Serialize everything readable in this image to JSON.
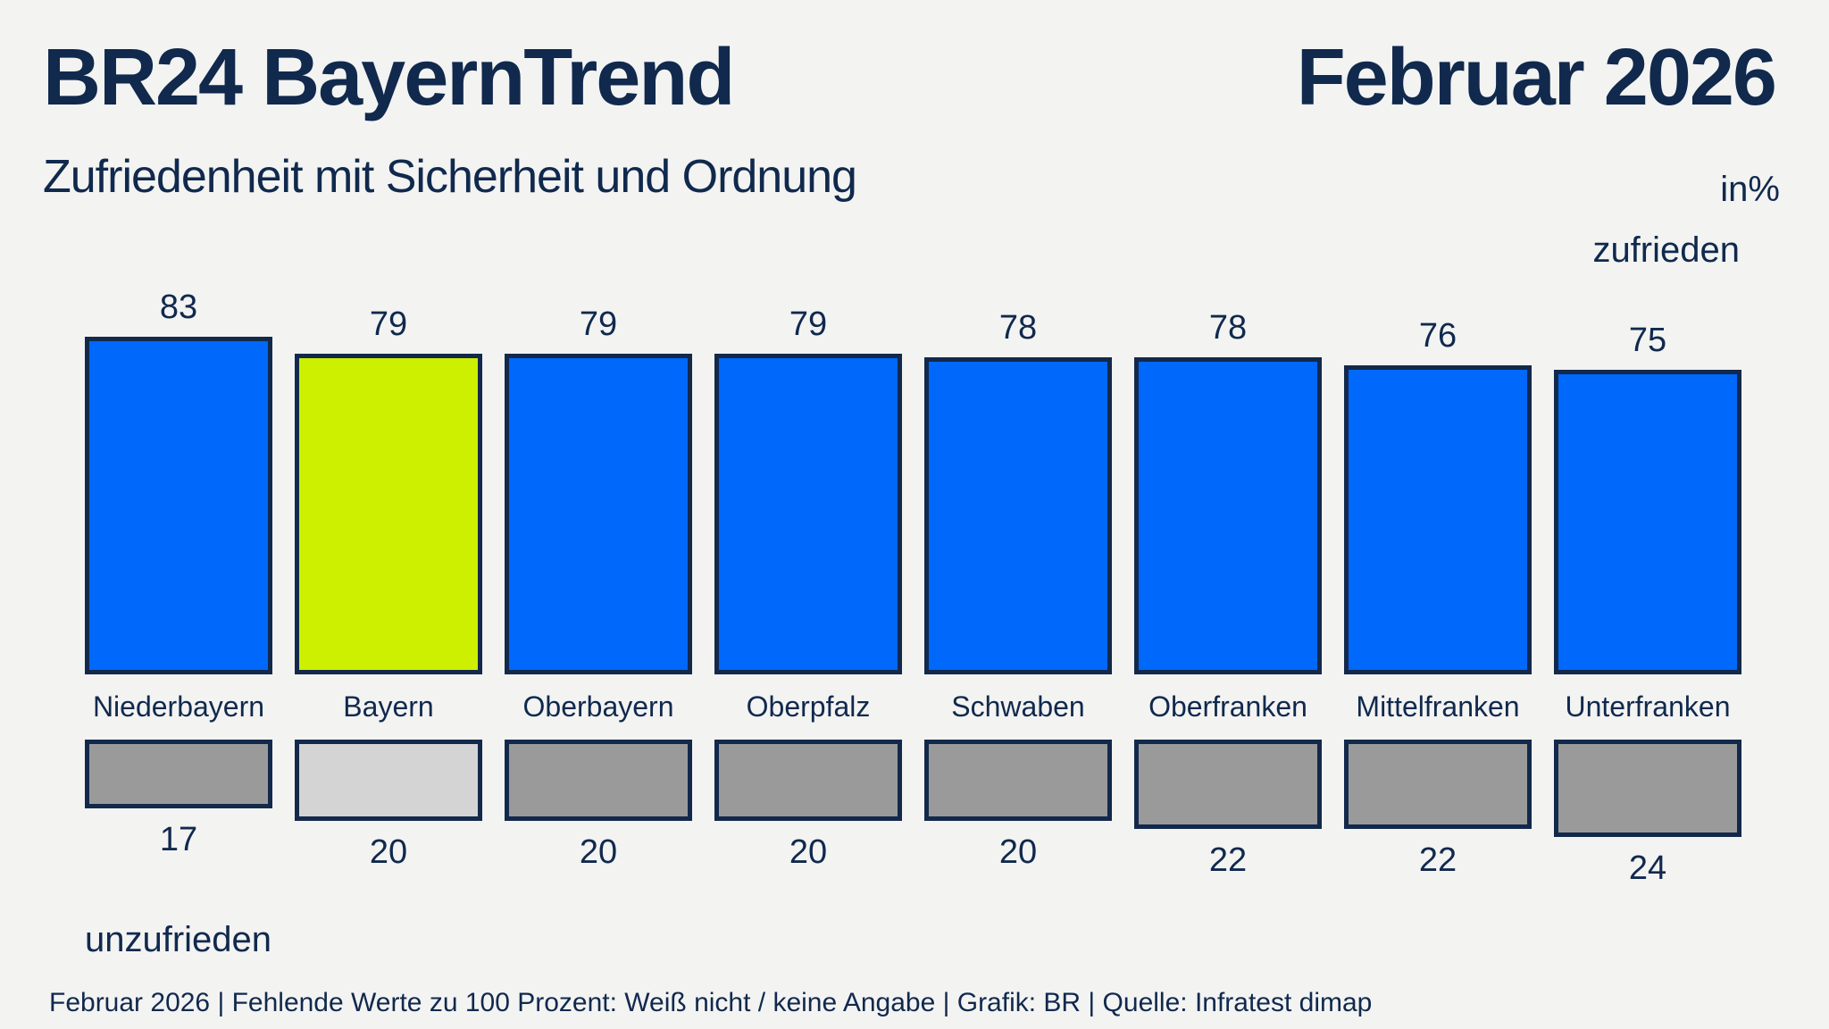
{
  "header": {
    "title": "BR24 BayernTrend",
    "date": "Februar 2026",
    "subtitle": "Zufriedenheit mit Sicherheit und Ordnung",
    "unit": "in%"
  },
  "legend": {
    "satisfied": "zufrieden",
    "unsatisfied": "unzufrieden"
  },
  "footer": "Februar 2026 | Fehlende Werte zu 100 Prozent: Weiß nicht / keine Angabe | Grafik: BR | Quelle: Infratest dimap",
  "colors": {
    "background": "#f3f3f2",
    "text_navy": "#10294d",
    "bar_border": "#13294b",
    "satisfied": "#0068fa",
    "satisfied_highlight": "#ccf000",
    "unsatisfied": "#9a9a9a",
    "unsatisfied_highlight": "#d4d4d4"
  },
  "chart_data": {
    "type": "bar",
    "title": "Zufriedenheit mit Sicherheit und Ordnung",
    "unit": "in%",
    "categories": [
      "Niederbayern",
      "Bayern",
      "Oberbayern",
      "Oberpfalz",
      "Schwaben",
      "Oberfranken",
      "Mittelfranken",
      "Unterfranken"
    ],
    "series": [
      {
        "name": "zufrieden",
        "values": [
          83,
          79,
          79,
          79,
          78,
          78,
          76,
          75
        ]
      },
      {
        "name": "unzufrieden",
        "values": [
          17,
          20,
          20,
          20,
          20,
          22,
          22,
          24
        ]
      }
    ],
    "highlighted_category": "Bayern",
    "orientation": "vertical",
    "grid": false,
    "value_labels": true,
    "legend_position": "right-top-and-left-bottom"
  }
}
